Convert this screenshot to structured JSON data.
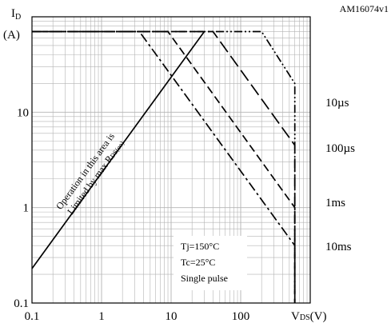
{
  "chart_data": {
    "type": "line",
    "figure_id": "AM16074v1",
    "y_label_main": "I",
    "y_label_sub": "D",
    "y_unit": "(A)",
    "x_label_main": "V",
    "x_label_sub": "DS",
    "x_unit": "(V)",
    "x_scale": "log",
    "y_scale": "log",
    "xlim": [
      0.1,
      1000
    ],
    "ylim": [
      0.1,
      100
    ],
    "grid": true,
    "x_ticks": [
      {
        "value": 0.1,
        "label": "0.1"
      },
      {
        "value": 1,
        "label": "1"
      },
      {
        "value": 10,
        "label": "10"
      },
      {
        "value": 100,
        "label": "100"
      }
    ],
    "y_ticks": [
      {
        "value": 0.1,
        "label": "0.1"
      },
      {
        "value": 1,
        "label": "1"
      },
      {
        "value": 10,
        "label": "10"
      }
    ],
    "rds_region": {
      "line1": "Operation in this area is",
      "line2_main": "Limited by max R",
      "line2_sub": "DS(on)",
      "points": [
        [
          0.1,
          0.23
        ],
        [
          30,
          70
        ]
      ]
    },
    "series": [
      {
        "name": "10µs",
        "style": "dash-dot-dot",
        "points": [
          [
            0.1,
            70
          ],
          [
            200,
            70
          ],
          [
            600,
            20
          ],
          [
            600,
            0.1
          ]
        ]
      },
      {
        "name": "100µs",
        "style": "long-dash",
        "points": [
          [
            0.1,
            70
          ],
          [
            40,
            70
          ],
          [
            600,
            4.5
          ],
          [
            600,
            0.1
          ]
        ]
      },
      {
        "name": "1ms",
        "style": "dash",
        "points": [
          [
            0.1,
            70
          ],
          [
            9,
            70
          ],
          [
            600,
            1.0
          ],
          [
            600,
            0.1
          ]
        ]
      },
      {
        "name": "10ms",
        "style": "dash-dot",
        "points": [
          [
            0.1,
            70
          ],
          [
            3.5,
            70
          ],
          [
            600,
            0.4
          ],
          [
            600,
            0.1
          ]
        ]
      }
    ],
    "annotation": [
      "Tj=150°C",
      "Tc=25°C",
      "Single pulse"
    ]
  }
}
